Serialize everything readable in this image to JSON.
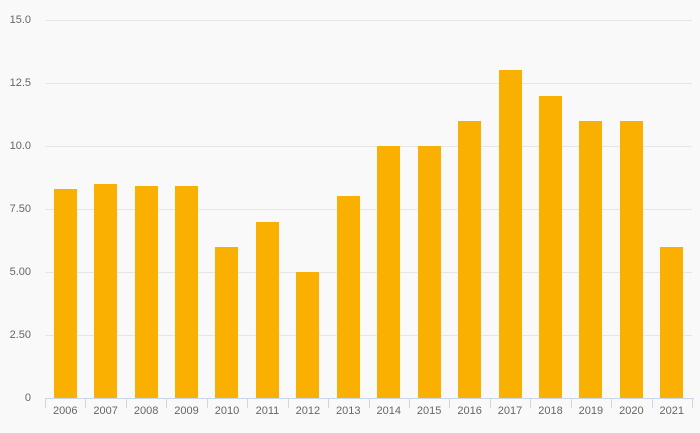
{
  "chart_data": {
    "type": "bar",
    "title": "",
    "xlabel": "",
    "ylabel": "",
    "categories": [
      "2006",
      "2007",
      "2008",
      "2009",
      "2010",
      "2011",
      "2012",
      "2013",
      "2014",
      "2015",
      "2016",
      "2017",
      "2018",
      "2019",
      "2020",
      "2021"
    ],
    "values": [
      8.3,
      8.5,
      8.4,
      8.4,
      6.0,
      7.0,
      5.0,
      8.0,
      10.0,
      10.0,
      11.0,
      13.0,
      12.0,
      11.0,
      11.0,
      6.0
    ],
    "ylim": [
      0,
      15
    ],
    "yticks": [
      {
        "value": 0,
        "label": "0"
      },
      {
        "value": 2.5,
        "label": "2.50"
      },
      {
        "value": 5,
        "label": "5.00"
      },
      {
        "value": 7.5,
        "label": "7.50"
      },
      {
        "value": 10,
        "label": "10.0"
      },
      {
        "value": 12.5,
        "label": "12.5"
      },
      {
        "value": 15,
        "label": "15.0"
      }
    ],
    "grid": true,
    "legend": false,
    "colors": {
      "bar": "#f9b000",
      "background": "#f9f9f9",
      "gridline": "#e6e6e6",
      "axis_line": "#ccd6eb",
      "label": "#666666"
    }
  }
}
